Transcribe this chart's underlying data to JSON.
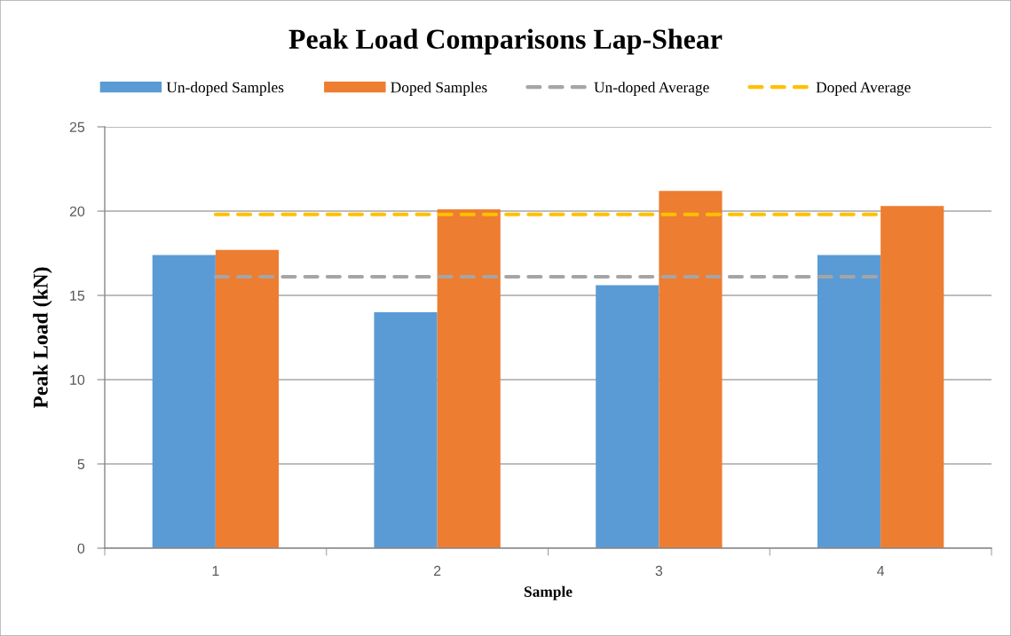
{
  "chart_data": {
    "type": "bar",
    "title": "Peak Load Comparisons Lap-Shear",
    "xlabel": "Sample",
    "ylabel": "Peak Load (kN)",
    "categories": [
      "1",
      "2",
      "3",
      "4"
    ],
    "series": [
      {
        "name": "Un-doped Samples",
        "color": "#5b9bd5",
        "values": [
          17.4,
          14.0,
          15.6,
          17.4
        ]
      },
      {
        "name": "Doped Samples",
        "color": "#ed7d31",
        "values": [
          17.7,
          20.1,
          21.2,
          20.3
        ]
      },
      {
        "name": "Un-doped Average",
        "type": "line",
        "color": "#a5a5a5",
        "values": [
          16.1,
          16.1,
          16.1,
          16.1
        ]
      },
      {
        "name": "Doped Average",
        "type": "line",
        "color": "#ffc000",
        "values": [
          19.8,
          19.8,
          19.8,
          19.8
        ]
      }
    ],
    "ylim": [
      0,
      25
    ],
    "yticks": [
      0,
      5,
      10,
      15,
      20,
      25
    ],
    "grid": "y",
    "legend": "top",
    "line_style": "dashed"
  }
}
